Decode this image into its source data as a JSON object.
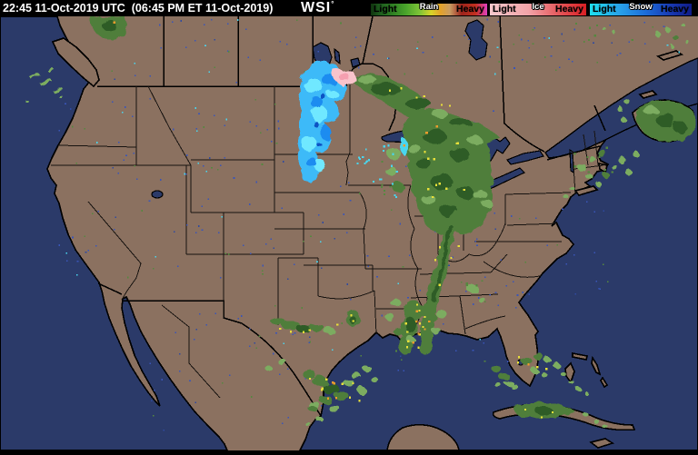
{
  "header": {
    "timestamp": "22:45 11-Oct-2019 UTC  (06:45 PM ET 11-Oct-2019)",
    "logo": "WSI",
    "logo_mark": "°"
  },
  "legend": {
    "rain": {
      "label": "Rain",
      "light": "Light",
      "heavy": "Heavy",
      "stops": [
        "#10350F",
        "#1E5C1E",
        "#2E7D23",
        "#49A32B",
        "#7EC437",
        "#D8D329",
        "#E2A12A",
        "#C89B63",
        "#9C241C",
        "#C3301F",
        "#E040C0"
      ]
    },
    "ice": {
      "label": "Ice",
      "light": "Light",
      "heavy": "Heavy",
      "stops": [
        "#F7C9CD",
        "#F2A3A8",
        "#E4575A",
        "#D91F24"
      ]
    },
    "snow": {
      "label": "Snow",
      "light": "Light",
      "heavy": "Heavy",
      "stops": [
        "#20E0F0",
        "#28A0E8",
        "#1C6CD8",
        "#1838B0",
        "#101C88"
      ]
    }
  },
  "colors": {
    "land": "#8B7160",
    "ocean": "#2B3A69",
    "border": "#000000",
    "state_line": "#171310",
    "snow_base": "#3DBAF8",
    "snow_light": "#6FE8FF",
    "snow_mid": "#1D8CF0",
    "snow_dark": "#1152C4",
    "ice_light": "#F9C3CB",
    "ice_deep": "#F59FB0",
    "rain_xlight": "#95BF76",
    "rain_light": "#7BAC60",
    "rain_mid": "#4F7E3B",
    "rain_dark": "#2F5B25",
    "yellow": "#E8E03A",
    "orange": "#EE9C2C",
    "noise_blue": "#3A55B8",
    "noise_green": "#55883F",
    "noise_cyan": "#49D6EF"
  }
}
